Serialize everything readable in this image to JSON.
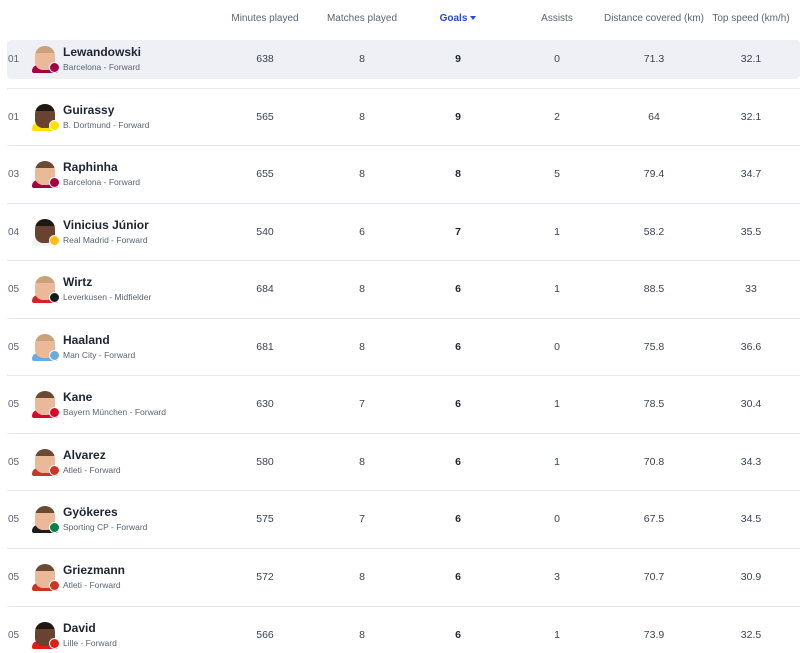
{
  "columns": {
    "minutes": "Minutes played",
    "matches": "Matches played",
    "goals": "Goals",
    "assists": "Assists",
    "distance": "Distance covered (km)",
    "speed": "Top speed (km/h)"
  },
  "colors": {
    "accent": "#2548d8",
    "row_highlight": "#eef0f6"
  },
  "players": [
    {
      "rank": "01",
      "name": "Lewandowski",
      "team": "Barcelona - Forward",
      "minutes": "638",
      "matches": "8",
      "goals": "9",
      "assists": "0",
      "distance": "71.3",
      "speed": "32.1",
      "club_color": "#a50044",
      "shirt_color": "#a50044",
      "skin": "light"
    },
    {
      "rank": "01",
      "name": "Guirassy",
      "team": "B. Dortmund - Forward",
      "minutes": "565",
      "matches": "8",
      "goals": "9",
      "assists": "2",
      "distance": "64",
      "speed": "32.1",
      "club_color": "#fde100",
      "shirt_color": "#fde100",
      "skin": "dark"
    },
    {
      "rank": "03",
      "name": "Raphinha",
      "team": "Barcelona - Forward",
      "minutes": "655",
      "matches": "8",
      "goals": "8",
      "assists": "5",
      "distance": "79.4",
      "speed": "34.7",
      "club_color": "#a50044",
      "shirt_color": "#a50044",
      "skin": "normal"
    },
    {
      "rank": "04",
      "name": "Vinicius Júnior",
      "team": "Real Madrid - Forward",
      "minutes": "540",
      "matches": "6",
      "goals": "7",
      "assists": "1",
      "distance": "58.2",
      "speed": "35.5",
      "club_color": "#febe10",
      "shirt_color": "#f2f2f2",
      "skin": "dark"
    },
    {
      "rank": "05",
      "name": "Wirtz",
      "team": "Leverkusen - Midfielder",
      "minutes": "684",
      "matches": "8",
      "goals": "6",
      "assists": "1",
      "distance": "88.5",
      "speed": "33",
      "club_color": "#1a1a1a",
      "shirt_color": "#d9202b",
      "skin": "light"
    },
    {
      "rank": "05",
      "name": "Haaland",
      "team": "Man City - Forward",
      "minutes": "681",
      "matches": "8",
      "goals": "6",
      "assists": "0",
      "distance": "75.8",
      "speed": "36.6",
      "club_color": "#6cabdd",
      "shirt_color": "#6cabdd",
      "skin": "light"
    },
    {
      "rank": "05",
      "name": "Kane",
      "team": "Bayern München - Forward",
      "minutes": "630",
      "matches": "7",
      "goals": "6",
      "assists": "1",
      "distance": "78.5",
      "speed": "30.4",
      "club_color": "#dc052d",
      "shirt_color": "#dc052d",
      "skin": "normal"
    },
    {
      "rank": "05",
      "name": "Alvarez",
      "team": "Atleti - Forward",
      "minutes": "580",
      "matches": "8",
      "goals": "6",
      "assists": "1",
      "distance": "70.8",
      "speed": "34.3",
      "club_color": "#cb3524",
      "shirt_color": "#cb3524",
      "skin": "normal"
    },
    {
      "rank": "05",
      "name": "Gyökeres",
      "team": "Sporting CP - Forward",
      "minutes": "575",
      "matches": "7",
      "goals": "6",
      "assists": "0",
      "distance": "67.5",
      "speed": "34.5",
      "club_color": "#00824a",
      "shirt_color": "#1d1d1d",
      "skin": "normal"
    },
    {
      "rank": "05",
      "name": "Griezmann",
      "team": "Atleti - Forward",
      "minutes": "572",
      "matches": "8",
      "goals": "6",
      "assists": "3",
      "distance": "70.7",
      "speed": "30.9",
      "club_color": "#cb3524",
      "shirt_color": "#cb3524",
      "skin": "normal"
    },
    {
      "rank": "05",
      "name": "David",
      "team": "Lille - Forward",
      "minutes": "566",
      "matches": "8",
      "goals": "6",
      "assists": "1",
      "distance": "73.9",
      "speed": "32.5",
      "club_color": "#e01e13",
      "shirt_color": "#e01e13",
      "skin": "dark"
    }
  ]
}
